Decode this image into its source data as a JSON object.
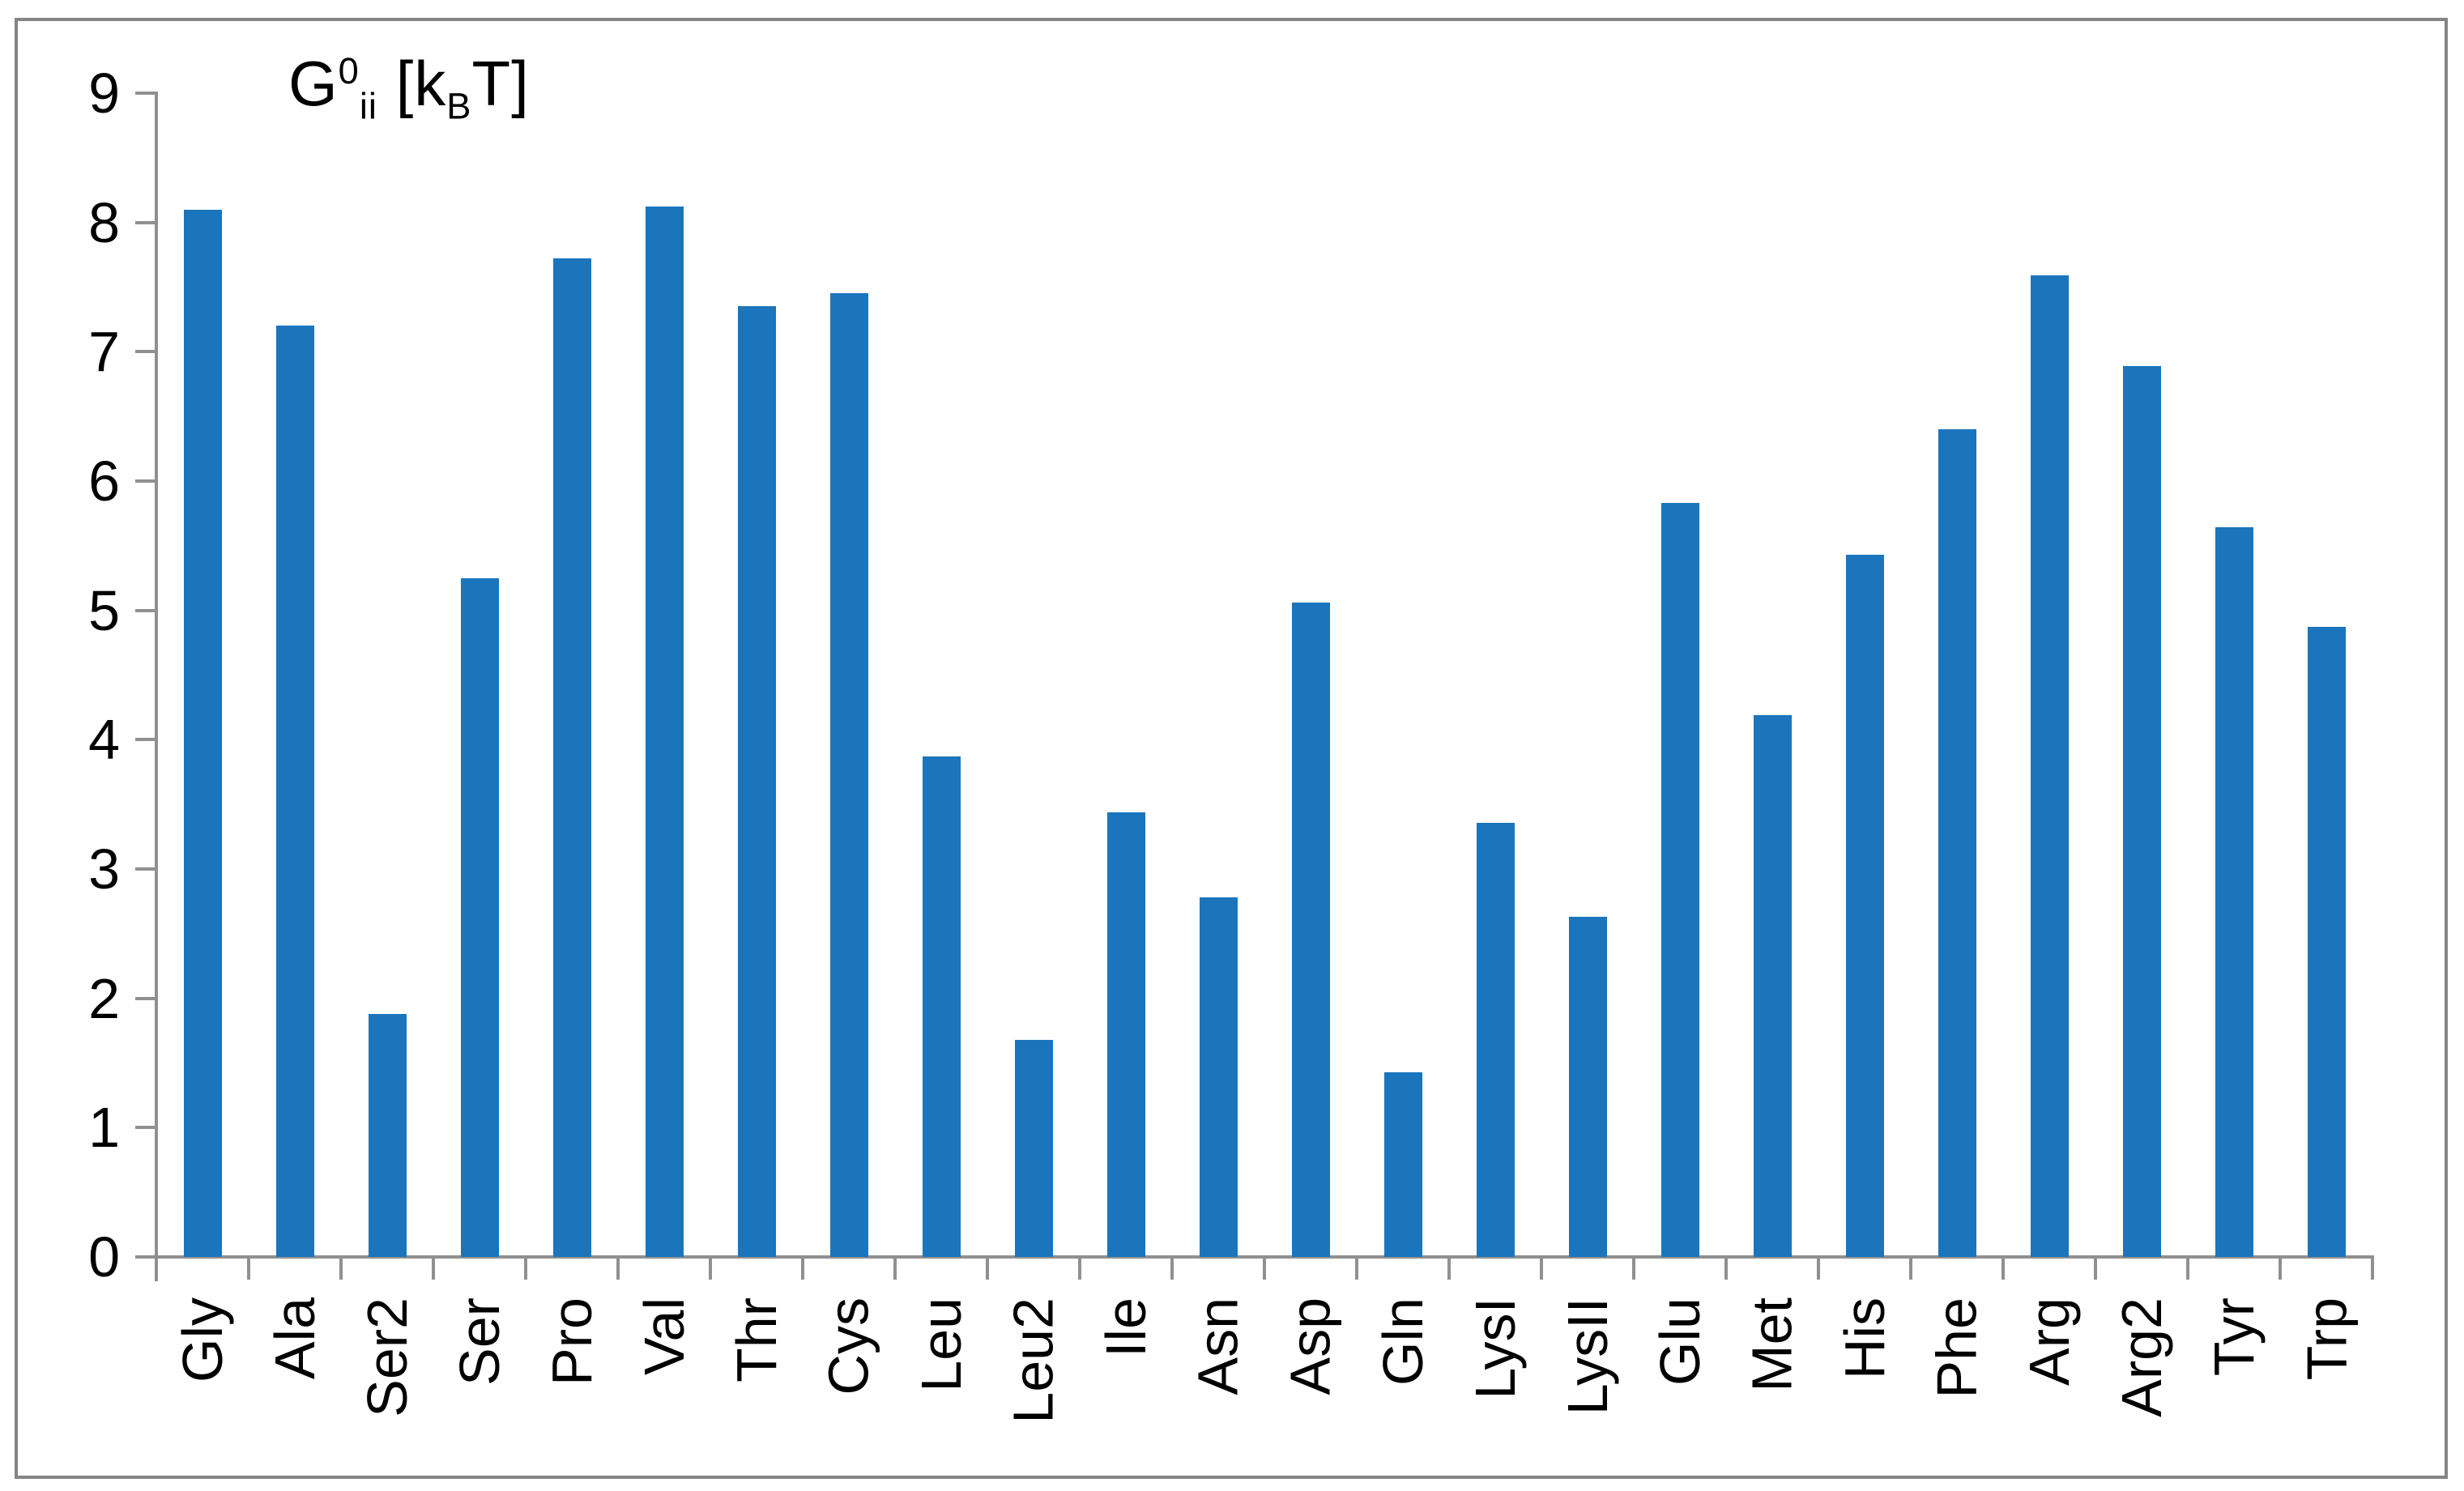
{
  "title_parts": {
    "base": "G",
    "sup": "0",
    "sub": "ii",
    "tail_open": " [k",
    "tail_sub": "B",
    "tail_close": "T]"
  },
  "chart_data": {
    "type": "bar",
    "title": "G0ii [kBT]",
    "xlabel": "",
    "ylabel": "G0ii [kBT]",
    "categories": [
      "Gly",
      "Ala",
      "Ser2",
      "Ser",
      "Pro",
      "Val",
      "Thr",
      "Cys",
      "Leu",
      "Leu2",
      "Ile",
      "Asn",
      "Asp",
      "Gln",
      "LysI",
      "LysII",
      "Glu",
      "Met",
      "His",
      "Phe",
      "Arg",
      "Arg2",
      "Tyr",
      "Trp"
    ],
    "values": [
      8.1,
      7.2,
      1.88,
      5.25,
      7.72,
      8.12,
      7.35,
      7.45,
      3.87,
      1.68,
      3.44,
      2.78,
      5.06,
      1.43,
      3.36,
      2.63,
      5.83,
      4.19,
      5.43,
      6.4,
      7.59,
      6.89,
      5.64,
      4.87
    ],
    "yticks": [
      0,
      1,
      2,
      3,
      4,
      5,
      6,
      7,
      8,
      9
    ],
    "ylim": [
      0,
      9
    ],
    "grid": false,
    "legend": null,
    "bar_color": "#1B75BC",
    "axis_color": "#909090",
    "border_color": "#858585",
    "text_color": "#000000",
    "background_color": "#FFFFFF"
  }
}
